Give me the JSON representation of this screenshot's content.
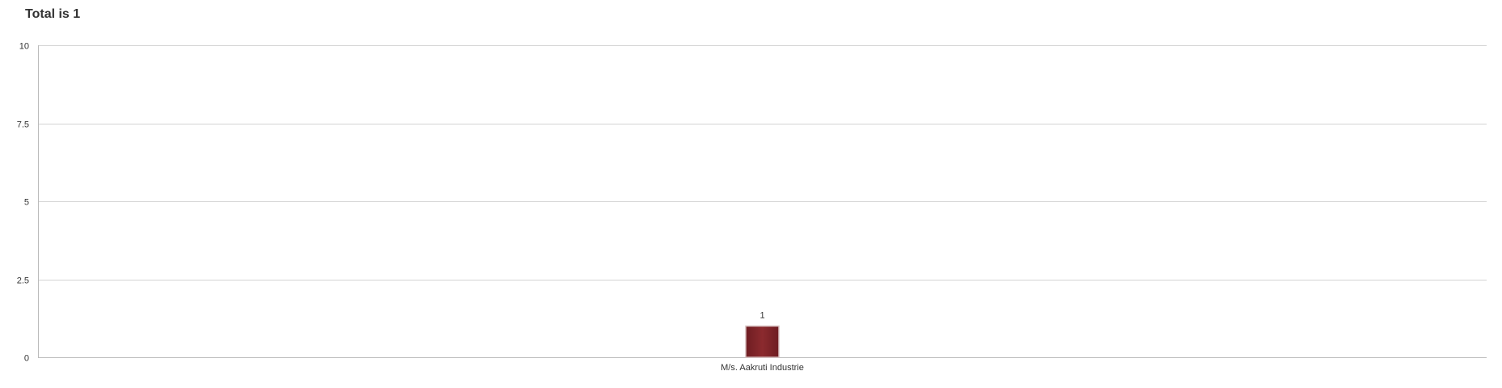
{
  "chart_data": {
    "type": "bar",
    "title": "Total is 1",
    "categories": [
      "M/s. Aakruti Industrie"
    ],
    "values": [
      1
    ],
    "data_labels": [
      "1"
    ],
    "ylim": [
      0,
      10
    ],
    "yticks": [
      0,
      2.5,
      5,
      7.5,
      10
    ],
    "ytick_labels": [
      "0",
      "2.5",
      "5",
      "7.5",
      "10"
    ],
    "xlabel": "",
    "ylabel": "",
    "grid": true,
    "legend": "none",
    "colors": {
      "bar": "#8b2a2e",
      "bar_dark": "#6e1d22",
      "grid": "#d4d4d4",
      "axis": "#bbbbbb",
      "text": "#333333"
    }
  }
}
